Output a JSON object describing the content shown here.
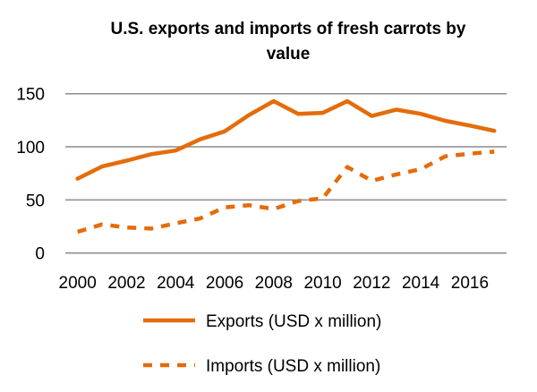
{
  "chart_data": {
    "type": "line",
    "title_lines": [
      "U.S. exports and imports of fresh carrots by",
      "value"
    ],
    "xlabel": "",
    "ylabel": "",
    "x": [
      2000,
      2001,
      2002,
      2003,
      2004,
      2005,
      2006,
      2007,
      2008,
      2009,
      2010,
      2011,
      2012,
      2013,
      2014,
      2015,
      2016,
      2017
    ],
    "x_tick_labels": [
      "2000",
      "2002",
      "2004",
      "2006",
      "2008",
      "2010",
      "2012",
      "2014",
      "2016"
    ],
    "y_tick_labels": [
      "0",
      "50",
      "100",
      "150"
    ],
    "ylim": [
      0,
      150
    ],
    "grid": "horizontal",
    "legend_position": "bottom",
    "series": [
      {
        "name": "Exports (USD x million)",
        "style": "solid",
        "color": "#E46C0A",
        "values": [
          70,
          81.5,
          87,
          93,
          96.5,
          107,
          114.5,
          130,
          143,
          131,
          132,
          143,
          129,
          135,
          131,
          124.5,
          120,
          115
        ]
      },
      {
        "name": "Imports (USD x million)",
        "style": "dashed",
        "color": "#E46C0A",
        "values": [
          20,
          27,
          24,
          23,
          28,
          32.5,
          43,
          45,
          41.5,
          49,
          51.5,
          81,
          68,
          74,
          79,
          91,
          93.5,
          95.5
        ]
      }
    ]
  }
}
